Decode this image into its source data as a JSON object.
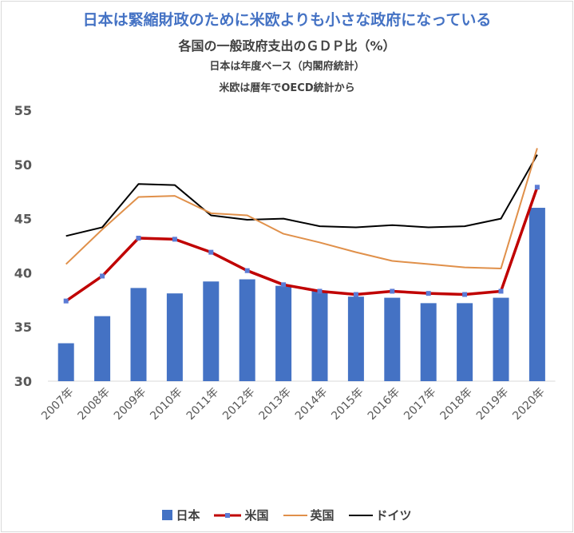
{
  "chart_data": {
    "type": "bar+line",
    "title": "日本は緊縮財政のために米欧よりも小さな政府になっている",
    "subtitles": [
      "各国の一般政府支出のＧＤＰ比（%）",
      "日本は年度ベース（内閣府統計）",
      "米欧は暦年でOECD統計から"
    ],
    "categories": [
      "2007年",
      "2008年",
      "2009年",
      "2010年",
      "2011年",
      "2012年",
      "2013年",
      "2014年",
      "2015年",
      "2016年",
      "2017年",
      "2018年",
      "2019年",
      "2020年"
    ],
    "ylim": [
      30,
      55
    ],
    "yticks": [
      "30",
      "35",
      "40",
      "45",
      "50",
      "55"
    ],
    "grid": false,
    "legend_position": "bottom",
    "series": [
      {
        "name": "日本",
        "type": "bar",
        "color": "#4472c4",
        "values": [
          33.5,
          36.0,
          38.6,
          38.1,
          39.2,
          39.4,
          38.8,
          38.3,
          37.8,
          37.7,
          37.2,
          37.2,
          37.7,
          46.0
        ]
      },
      {
        "name": "米国",
        "type": "line",
        "color": "#c00000",
        "marker_color": "#5b7bd5",
        "values": [
          37.4,
          39.7,
          43.2,
          43.1,
          41.9,
          40.2,
          38.9,
          38.3,
          38.0,
          38.3,
          38.1,
          38.0,
          38.3,
          47.9
        ]
      },
      {
        "name": "英国",
        "type": "line",
        "color": "#e0904a",
        "values": [
          40.8,
          44.0,
          47.0,
          47.1,
          45.5,
          45.3,
          43.6,
          42.8,
          41.9,
          41.1,
          40.8,
          40.5,
          40.4,
          51.5
        ]
      },
      {
        "name": "ドイツ",
        "type": "line",
        "color": "#000000",
        "values": [
          43.4,
          44.2,
          48.2,
          48.1,
          45.3,
          44.9,
          45.0,
          44.3,
          44.2,
          44.4,
          44.2,
          44.3,
          45.0,
          50.9
        ]
      }
    ]
  }
}
